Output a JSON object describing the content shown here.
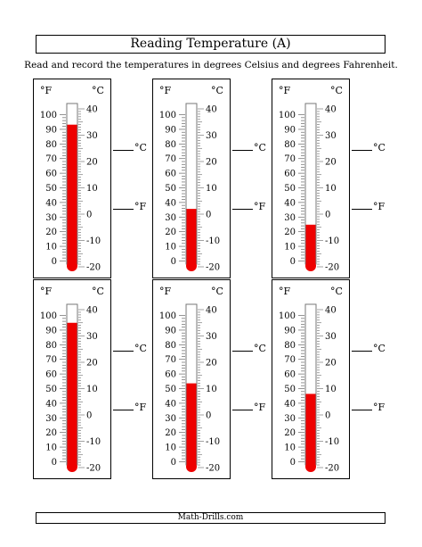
{
  "title": "Reading Temperature (A)",
  "instructions": "Read and record the temperatures in degrees Celsius and degrees Fahrenheit.",
  "footer": "Math-Drills.com",
  "scale": {
    "fahrenheit_symbol": "°F",
    "celsius_symbol": "°C",
    "fahrenheit_labels": [
      "100",
      "90",
      "80",
      "70",
      "60",
      "50",
      "40",
      "30",
      "20",
      "10",
      "0"
    ],
    "celsius_labels": [
      "40",
      "30",
      "20",
      "10",
      "0",
      "-10",
      "-20"
    ]
  },
  "answer_units": {
    "celsius": "°C",
    "fahrenheit": "°F"
  },
  "colors": {
    "mercury": "#ee0000",
    "border": "#000000"
  },
  "thermometers": [
    {
      "id": "A1",
      "mercury_celsius": 34
    },
    {
      "id": "A2",
      "mercury_celsius": 2
    },
    {
      "id": "A3",
      "mercury_celsius": -4
    },
    {
      "id": "A4",
      "mercury_celsius": 35
    },
    {
      "id": "A5",
      "mercury_celsius": 12
    },
    {
      "id": "A6",
      "mercury_celsius": 8
    }
  ]
}
